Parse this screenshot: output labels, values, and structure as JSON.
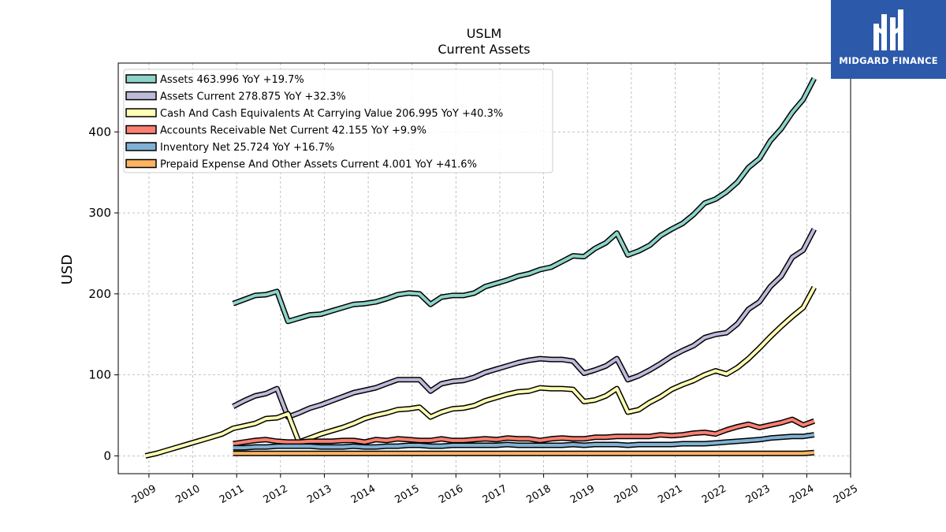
{
  "brand": {
    "name": "MIDGARD FINANCE",
    "icon": "midgard-logo-icon",
    "color": "#2d59aa"
  },
  "chart_data": {
    "type": "line",
    "title": "USLM",
    "subtitle": "Current  Assets",
    "ylabel": "USD",
    "xlabel": "",
    "ylim": [
      -22,
      485
    ],
    "xlim": [
      2008.3,
      2025.0
    ],
    "yticks": [
      0,
      100,
      200,
      300,
      400
    ],
    "xticks": [
      2009,
      2010,
      2011,
      2012,
      2013,
      2014,
      2015,
      2016,
      2017,
      2018,
      2019,
      2020,
      2021,
      2022,
      2023,
      2024,
      2025
    ],
    "grid": true,
    "legend_position": "top-left",
    "series": [
      {
        "name": "Assets  463.996 YoY +19.7%",
        "color": "#8dd3c7",
        "x": [
          2010.92,
          2011.17,
          2011.42,
          2011.67,
          2011.92,
          2012.17,
          2012.42,
          2012.67,
          2012.92,
          2013.17,
          2013.42,
          2013.67,
          2013.92,
          2014.17,
          2014.42,
          2014.67,
          2014.92,
          2015.17,
          2015.42,
          2015.67,
          2015.92,
          2016.17,
          2016.42,
          2016.67,
          2016.92,
          2017.17,
          2017.42,
          2017.67,
          2017.92,
          2018.17,
          2018.42,
          2018.67,
          2018.92,
          2019.17,
          2019.42,
          2019.67,
          2019.92,
          2020.17,
          2020.42,
          2020.67,
          2020.92,
          2021.17,
          2021.42,
          2021.67,
          2021.92,
          2022.17,
          2022.42,
          2022.67,
          2022.92,
          2023.17,
          2023.42,
          2023.67,
          2023.92,
          2024.17
        ],
        "values": [
          188,
          193,
          198,
          199,
          203,
          166,
          170,
          174,
          175,
          179,
          183,
          187,
          188,
          190,
          194,
          199,
          201,
          200,
          187,
          196,
          198,
          198,
          201,
          209,
          213,
          217,
          222,
          225,
          230,
          233,
          240,
          247,
          246,
          256,
          263,
          275,
          248,
          253,
          260,
          272,
          280,
          287,
          298,
          312,
          317,
          326,
          338,
          356,
          367,
          389,
          404,
          424,
          440,
          466
        ]
      },
      {
        "name": "Assets Current  278.875 YoY +32.3%",
        "color": "#bebada",
        "x": [
          2010.92,
          2011.17,
          2011.42,
          2011.67,
          2011.92,
          2012.17,
          2012.42,
          2012.67,
          2012.92,
          2013.17,
          2013.42,
          2013.67,
          2013.92,
          2014.17,
          2014.42,
          2014.67,
          2014.92,
          2015.17,
          2015.42,
          2015.67,
          2015.92,
          2016.17,
          2016.42,
          2016.67,
          2016.92,
          2017.17,
          2017.42,
          2017.67,
          2017.92,
          2018.17,
          2018.42,
          2018.67,
          2018.92,
          2019.17,
          2019.42,
          2019.67,
          2019.92,
          2020.17,
          2020.42,
          2020.67,
          2020.92,
          2021.17,
          2021.42,
          2021.67,
          2021.92,
          2022.17,
          2022.42,
          2022.67,
          2022.92,
          2023.17,
          2023.42,
          2023.67,
          2023.92,
          2024.17
        ],
        "values": [
          61,
          68,
          74,
          77,
          83,
          48,
          53,
          59,
          63,
          68,
          73,
          78,
          81,
          84,
          89,
          94,
          94,
          94,
          80,
          89,
          92,
          93,
          97,
          103,
          107,
          111,
          115,
          118,
          120,
          119,
          119,
          117,
          102,
          106,
          111,
          120,
          94,
          99,
          106,
          114,
          123,
          130,
          136,
          146,
          150,
          152,
          163,
          181,
          190,
          209,
          222,
          245,
          254,
          280
        ]
      },
      {
        "name": "Cash And Cash Equivalents At Carrying Value  206.995 YoY +40.3%",
        "color": "#ffffb3",
        "x": [
          2008.92,
          2009.17,
          2009.42,
          2009.67,
          2009.92,
          2010.17,
          2010.42,
          2010.67,
          2010.92,
          2011.17,
          2011.42,
          2011.67,
          2011.92,
          2012.17,
          2012.42,
          2012.67,
          2012.92,
          2013.17,
          2013.42,
          2013.67,
          2013.92,
          2014.17,
          2014.42,
          2014.67,
          2014.92,
          2015.17,
          2015.42,
          2015.67,
          2015.92,
          2016.17,
          2016.42,
          2016.67,
          2016.92,
          2017.17,
          2017.42,
          2017.67,
          2017.92,
          2018.17,
          2018.42,
          2018.67,
          2018.92,
          2019.17,
          2019.42,
          2019.67,
          2019.92,
          2020.17,
          2020.42,
          2020.67,
          2020.92,
          2021.17,
          2021.42,
          2021.67,
          2021.92,
          2022.17,
          2022.42,
          2022.67,
          2022.92,
          2023.17,
          2023.42,
          2023.67,
          2023.92,
          2024.17
        ],
        "values": [
          0,
          3,
          7,
          11,
          15,
          19,
          23,
          27,
          34,
          37,
          40,
          46,
          47,
          52,
          17,
          22,
          27,
          31,
          35,
          40,
          46,
          50,
          53,
          57,
          58,
          60,
          48,
          54,
          58,
          59,
          62,
          68,
          72,
          76,
          79,
          80,
          84,
          83,
          83,
          82,
          67,
          69,
          74,
          83,
          54,
          57,
          66,
          73,
          82,
          88,
          93,
          100,
          105,
          101,
          109,
          120,
          133,
          147,
          160,
          172,
          183,
          208
        ]
      },
      {
        "name": "Accounts Receivable Net Current  42.155 YoY +9.9%",
        "color": "#fb8072",
        "x": [
          2010.92,
          2011.17,
          2011.42,
          2011.67,
          2011.92,
          2012.17,
          2012.42,
          2012.67,
          2012.92,
          2013.17,
          2013.42,
          2013.67,
          2013.92,
          2014.17,
          2014.42,
          2014.67,
          2014.92,
          2015.17,
          2015.42,
          2015.67,
          2015.92,
          2016.17,
          2016.42,
          2016.67,
          2016.92,
          2017.17,
          2017.42,
          2017.67,
          2017.92,
          2018.17,
          2018.42,
          2018.67,
          2018.92,
          2019.17,
          2019.42,
          2019.67,
          2019.92,
          2020.17,
          2020.42,
          2020.67,
          2020.92,
          2021.17,
          2021.42,
          2021.67,
          2021.92,
          2022.17,
          2022.42,
          2022.67,
          2022.92,
          2023.17,
          2023.42,
          2023.67,
          2023.92,
          2024.17
        ],
        "values": [
          15,
          17,
          19,
          20,
          18,
          17,
          17,
          18,
          18,
          18,
          19,
          19,
          17,
          20,
          19,
          21,
          20,
          19,
          19,
          21,
          19,
          19,
          20,
          21,
          20,
          22,
          21,
          21,
          19,
          21,
          22,
          21,
          21,
          23,
          23,
          24,
          24,
          24,
          24,
          26,
          25,
          26,
          28,
          29,
          27,
          32,
          36,
          39,
          35,
          38,
          41,
          45,
          38,
          43
        ]
      },
      {
        "name": "Inventory Net  25.724 YoY +16.7%",
        "color": "#80b1d3",
        "x": [
          2010.92,
          2011.17,
          2011.42,
          2011.67,
          2011.92,
          2012.17,
          2012.42,
          2012.67,
          2012.92,
          2013.17,
          2013.42,
          2013.67,
          2013.92,
          2014.17,
          2014.42,
          2014.67,
          2014.92,
          2015.17,
          2015.42,
          2015.67,
          2015.92,
          2016.17,
          2016.42,
          2016.67,
          2016.92,
          2017.17,
          2017.42,
          2017.67,
          2017.92,
          2018.17,
          2018.42,
          2018.67,
          2018.92,
          2019.17,
          2019.42,
          2019.67,
          2019.92,
          2020.17,
          2020.42,
          2020.67,
          2020.92,
          2021.17,
          2021.42,
          2021.67,
          2021.92,
          2022.17,
          2022.42,
          2022.67,
          2022.92,
          2023.17,
          2023.42,
          2023.67,
          2023.92,
          2024.17
        ],
        "values": [
          10,
          10,
          11,
          11,
          12,
          12,
          12,
          12,
          11,
          11,
          11,
          12,
          11,
          11,
          12,
          12,
          13,
          13,
          12,
          12,
          13,
          13,
          13,
          13,
          13,
          14,
          13,
          13,
          13,
          13,
          13,
          14,
          13,
          14,
          14,
          14,
          13,
          14,
          14,
          14,
          14,
          15,
          15,
          15,
          16,
          17,
          18,
          19,
          20,
          22,
          23,
          24,
          24,
          26
        ]
      },
      {
        "name": "Prepaid Expense And Other Assets Current  4.001 YoY +41.6%",
        "color": "#fdb462",
        "x": [
          2010.92,
          2011.17,
          2011.42,
          2011.67,
          2011.92,
          2012.17,
          2012.42,
          2012.67,
          2012.92,
          2013.17,
          2013.42,
          2013.67,
          2013.92,
          2014.17,
          2014.42,
          2014.67,
          2014.92,
          2015.17,
          2015.42,
          2015.67,
          2015.92,
          2016.17,
          2016.42,
          2016.67,
          2016.92,
          2017.17,
          2017.42,
          2017.67,
          2017.92,
          2018.17,
          2018.42,
          2018.67,
          2018.92,
          2019.17,
          2019.42,
          2019.67,
          2019.92,
          2020.17,
          2020.42,
          2020.67,
          2020.92,
          2021.17,
          2021.42,
          2021.67,
          2021.92,
          2022.17,
          2022.42,
          2022.67,
          2022.92,
          2023.17,
          2023.42,
          2023.67,
          2023.92,
          2024.17
        ],
        "values": [
          3,
          3,
          3,
          3,
          3,
          3,
          3,
          3,
          3,
          3,
          3,
          3,
          3,
          3,
          3,
          3,
          3,
          3,
          3,
          3,
          3,
          3,
          3,
          3,
          3,
          3,
          3,
          3,
          3,
          3,
          3,
          3,
          3,
          3,
          3,
          3,
          3,
          3,
          3,
          3,
          3,
          3,
          3,
          3,
          3,
          3,
          3,
          3,
          3,
          3,
          3,
          3,
          3,
          4
        ]
      }
    ]
  }
}
